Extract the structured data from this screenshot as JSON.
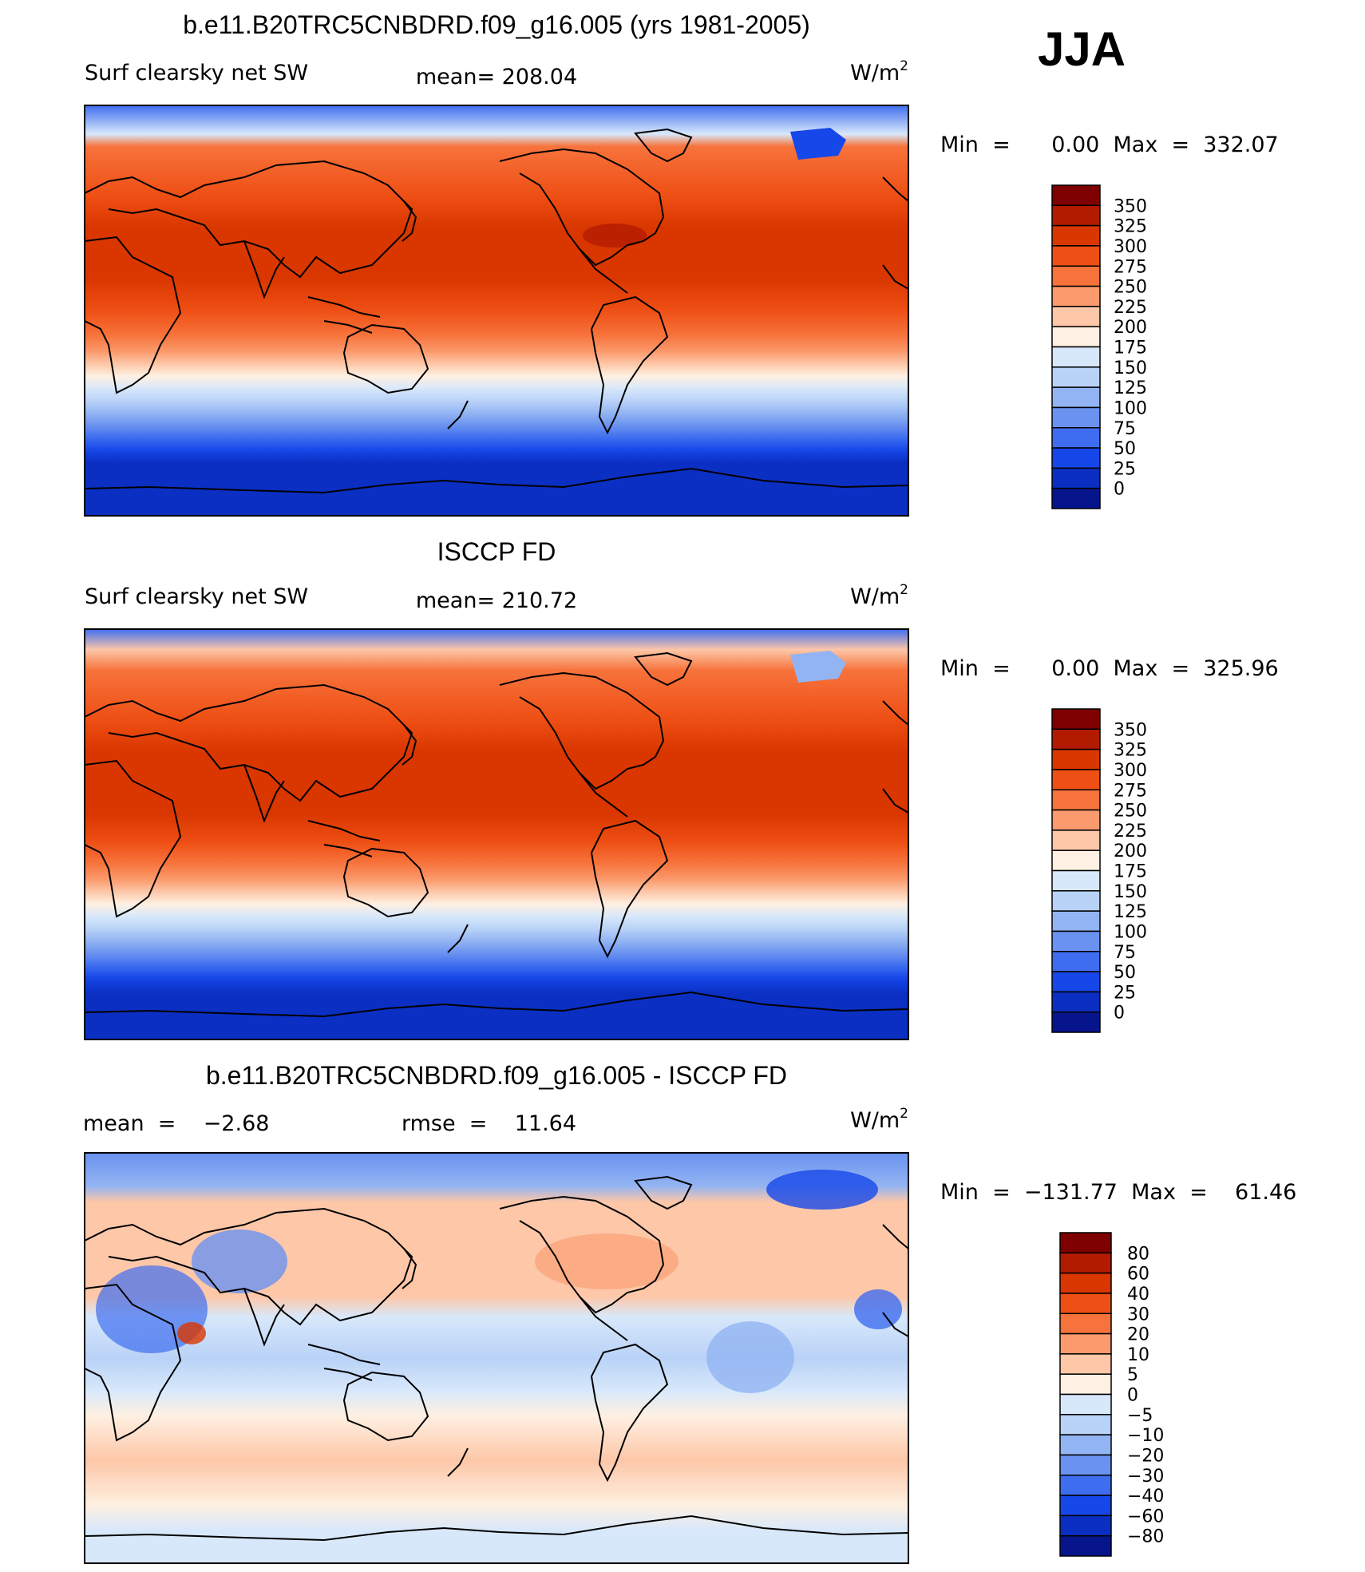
{
  "season": "JJA",
  "chart_data": [
    {
      "type": "heatmap",
      "title": "b.e11.B20TRC5CNBDRD.f09_g16.005 (yrs 1981-2005)",
      "variable": "Surf clearsky net SW",
      "mean_text": "mean=  208.04",
      "units_base": "W/m",
      "units_sup": "2",
      "min_text": "Min  =      0.00  Max  =  332.07",
      "levels": [
        "350",
        "325",
        "300",
        "275",
        "250",
        "225",
        "200",
        "175",
        "150",
        "125",
        "100",
        "75",
        "50",
        "25",
        "0"
      ],
      "colors": [
        "#7f0000",
        "#b31b00",
        "#d93600",
        "#ee4f14",
        "#f7733c",
        "#fb9a6c",
        "#fdc7a8",
        "#fef0e2",
        "#d8e8fb",
        "#b9d2f7",
        "#92b4f3",
        "#6a92f0",
        "#3e6df0",
        "#1647e8",
        "#0a2fc2",
        "#06158c"
      ]
    },
    {
      "type": "heatmap",
      "title": "ISCCP FD",
      "variable": "Surf clearsky net SW",
      "mean_text": "mean=  210.72",
      "units_base": "W/m",
      "units_sup": "2",
      "min_text": "Min  =      0.00  Max  =  325.96",
      "levels": [
        "350",
        "325",
        "300",
        "275",
        "250",
        "225",
        "200",
        "175",
        "150",
        "125",
        "100",
        "75",
        "50",
        "25",
        "0"
      ],
      "colors": [
        "#7f0000",
        "#b31b00",
        "#d93600",
        "#ee4f14",
        "#f7733c",
        "#fb9a6c",
        "#fdc7a8",
        "#fef0e2",
        "#d8e8fb",
        "#b9d2f7",
        "#92b4f3",
        "#6a92f0",
        "#3e6df0",
        "#1647e8",
        "#0a2fc2",
        "#06158c"
      ]
    },
    {
      "type": "heatmap",
      "title": "b.e11.B20TRC5CNBDRD.f09_g16.005 - ISCCP FD",
      "variable": "mean  =    −2.68",
      "mean_text": "rmse  =    11.64",
      "units_base": "W/m",
      "units_sup": "2",
      "min_text": "Min  =  −131.77  Max  =    61.46",
      "levels": [
        "80",
        "60",
        "40",
        "30",
        "20",
        "10",
        "5",
        "0",
        "−5",
        "−10",
        "−20",
        "−30",
        "−40",
        "−60",
        "−80"
      ],
      "colors": [
        "#7f0000",
        "#b31b00",
        "#d93600",
        "#ee4f14",
        "#f7733c",
        "#fb9a6c",
        "#fdc7a8",
        "#fef0e2",
        "#d8e8fb",
        "#b9d2f7",
        "#92b4f3",
        "#6a92f0",
        "#3e6df0",
        "#1647e8",
        "#0a2fc2",
        "#06158c"
      ]
    }
  ]
}
